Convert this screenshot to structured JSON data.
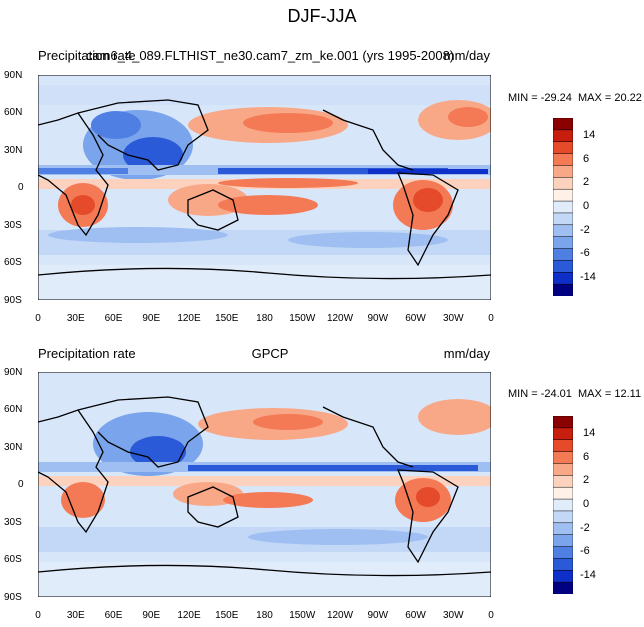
{
  "title": "DJF-JJA",
  "colorbar_levels": [
    "14",
    "6",
    "2",
    "0",
    "-2",
    "-6",
    "-14"
  ],
  "colorbar_colors": [
    "#8b0000",
    "#c81e0e",
    "#e54a2b",
    "#f47a55",
    "#f9a887",
    "#fcd2bf",
    "#fff0e8",
    "#e1ecfb",
    "#c3d8f7",
    "#9fbff2",
    "#7aa4eb",
    "#4f7fe2",
    "#2a5ad8",
    "#0e2fc8",
    "#000080"
  ],
  "x_ticks": [
    "0",
    "30E",
    "60E",
    "90E",
    "120E",
    "150E",
    "180",
    "150W",
    "120W",
    "90W",
    "60W",
    "30W",
    "0"
  ],
  "y_ticks": [
    "90N",
    "60N",
    "30N",
    "0",
    "30S",
    "60S",
    "90S"
  ],
  "panels": [
    {
      "left_string": "Precipitation rate",
      "center_string": "cam6_4_089.FLTHIST_ne30.cam7_zm_ke.001 (yrs 1995-2008)",
      "right_string": "mm/day",
      "min_label": "MIN = -29.24",
      "max_label": "MAX =  20.22"
    },
    {
      "left_string": "Precipitation rate",
      "center_string": "GPCP",
      "right_string": "mm/day",
      "min_label": "MIN = -24.01",
      "max_label": "MAX =  12.11"
    }
  ]
}
